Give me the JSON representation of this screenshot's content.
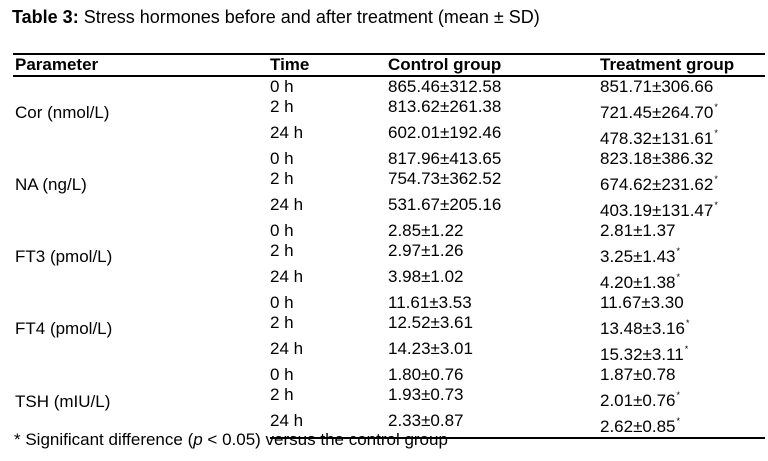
{
  "caption": {
    "lead": "Table 3:",
    "text": " Stress hormones before and after treatment (mean ± SD)"
  },
  "table": {
    "headers": [
      "Parameter",
      "Time",
      "Control group",
      "Treatment group"
    ],
    "groups": [
      {
        "parameter": "Cor (nmol/L)",
        "rows": [
          {
            "time": "0 h",
            "control": "865.46±312.58",
            "treatment": "851.71±306.66",
            "sig": ""
          },
          {
            "time": "2 h",
            "control": "813.62±261.38",
            "treatment": "721.45±264.70",
            "sig": "*"
          },
          {
            "time": "24 h",
            "control": "602.01±192.46",
            "treatment": "478.32±131.61",
            "sig": "*"
          }
        ]
      },
      {
        "parameter": "NA (ng/L)",
        "rows": [
          {
            "time": "0 h",
            "control": "817.96±413.65",
            "treatment": "823.18±386.32",
            "sig": ""
          },
          {
            "time": "2 h",
            "control": "754.73±362.52",
            "treatment": "674.62±231.62",
            "sig": "*"
          },
          {
            "time": "24 h",
            "control": "531.67±205.16",
            "treatment": "403.19±131.47",
            "sig": "*"
          }
        ]
      },
      {
        "parameter": "FT3 (pmol/L)",
        "rows": [
          {
            "time": "0 h",
            "control": "2.85±1.22",
            "treatment": "2.81±1.37",
            "sig": ""
          },
          {
            "time": "2 h",
            "control": "2.97±1.26",
            "treatment": "3.25±1.43",
            "sig": "*"
          },
          {
            "time": "24 h",
            "control": "3.98±1.02",
            "treatment": "4.20±1.38",
            "sig": "*"
          }
        ]
      },
      {
        "parameter": "FT4 (pmol/L)",
        "rows": [
          {
            "time": "0 h",
            "control": "11.61±3.53",
            "treatment": "11.67±3.30",
            "sig": ""
          },
          {
            "time": "2 h",
            "control": "12.52±3.61",
            "treatment": "13.48±3.16",
            "sig": "*"
          },
          {
            "time": "24 h",
            "control": "14.23±3.01",
            "treatment": "15.32±3.11",
            "sig": "*"
          }
        ]
      },
      {
        "parameter": "TSH (mIU/L)",
        "rows": [
          {
            "time": "0 h",
            "control": "1.80±0.76",
            "treatment": "1.87±0.78",
            "sig": ""
          },
          {
            "time": "2 h",
            "control": "1.93±0.73",
            "treatment": "2.01±0.76",
            "sig": "*"
          },
          {
            "time": "24 h",
            "control": "2.33±0.87",
            "treatment": "2.62±0.85",
            "sig": "*"
          }
        ]
      }
    ]
  },
  "footnote": {
    "prefix": "* Significant difference (",
    "italic": "p",
    "suffix": " < 0.05) versus the control group"
  }
}
